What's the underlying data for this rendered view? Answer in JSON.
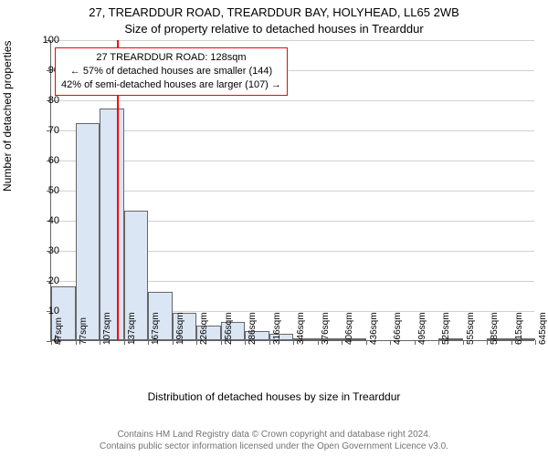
{
  "chart": {
    "type": "histogram",
    "title_line1": "27, TREARDDUR ROAD, TREARDDUR BAY, HOLYHEAD, LL65 2WB",
    "title_line2": "Size of property relative to detached houses in Trearddur",
    "title_fontsize": 13,
    "ylabel": "Number of detached properties",
    "xlabel": "Distribution of detached houses by size in Trearddur",
    "label_fontsize": 12,
    "xtick_labels": [
      "47sqm",
      "77sqm",
      "107sqm",
      "137sqm",
      "167sqm",
      "196sqm",
      "226sqm",
      "256sqm",
      "286sqm",
      "316sqm",
      "346sqm",
      "376sqm",
      "406sqm",
      "436sqm",
      "466sqm",
      "495sqm",
      "525sqm",
      "555sqm",
      "585sqm",
      "615sqm",
      "645sqm"
    ],
    "xtick_fontsize": 10,
    "ylim": [
      0,
      100
    ],
    "ytick_step": 10,
    "ytick_fontsize": 11,
    "grid_color": "#666666",
    "grid_opacity": 0.3,
    "bars": {
      "values": [
        18,
        72,
        77,
        43,
        16,
        9,
        5,
        6,
        3,
        2,
        0.5,
        0.5,
        0.5,
        0,
        0,
        0,
        0.5,
        0,
        0.5,
        0.5
      ],
      "fill_color": "#dbe6f4",
      "border_color": "#666666",
      "bar_width": 1.0
    },
    "reference_line": {
      "value_sqm": 128,
      "color": "#ff0000",
      "width": 2
    },
    "annotation": {
      "lines": [
        "27 TREARDDUR ROAD: 128sqm",
        "← 57% of detached houses are smaller (144)",
        "42% of semi-detached houses are larger (107) →"
      ],
      "border_color": "#ff0000",
      "background_color": "#ffffff",
      "fontsize": 11
    },
    "background_color": "#ffffff",
    "axis_color": "#666666"
  },
  "footer": {
    "line1": "Contains HM Land Registry data © Crown copyright and database right 2024.",
    "line2": "Contains public sector information licensed under the Open Government Licence v3.0.",
    "color": "#737373",
    "fontsize": 10
  }
}
